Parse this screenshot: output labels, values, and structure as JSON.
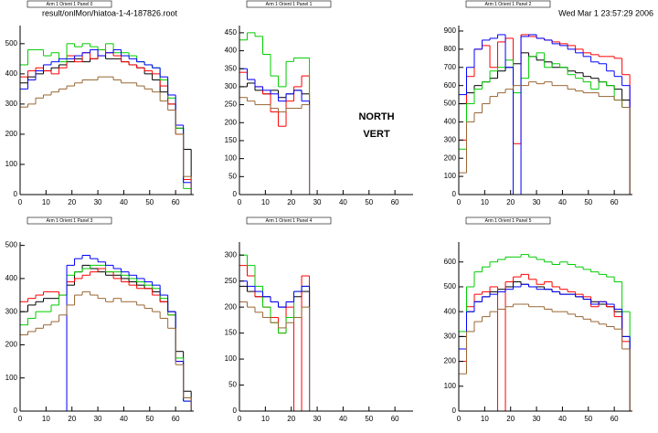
{
  "header": {
    "file": "result/onlMon/hiatoa-1-4-187826.root",
    "timestamp": "Wed Mar  1 23:57:29 2006"
  },
  "chart_data": [
    {
      "type": "histogram",
      "title": "Arm 1 Orient 1 Panel 0",
      "bins": [
        0,
        3,
        6,
        9,
        12,
        15,
        18,
        21,
        24,
        27,
        30,
        33,
        36,
        39,
        42,
        45,
        48,
        51,
        54,
        57,
        60,
        63,
        66
      ],
      "xlim": [
        0,
        67
      ],
      "ylim": [
        0,
        560
      ],
      "xticks": [
        0,
        10,
        20,
        30,
        40,
        50,
        60
      ],
      "yticks": [
        0,
        100,
        200,
        300,
        400,
        500
      ],
      "series": [
        {
          "color": "#000000",
          "values": [
            370,
            390,
            400,
            410,
            420,
            430,
            440,
            450,
            440,
            450,
            460,
            450,
            450,
            440,
            430,
            420,
            400,
            380,
            340,
            300,
            220,
            150
          ]
        },
        {
          "color": "#ff0000",
          "values": [
            390,
            410,
            420,
            410,
            400,
            420,
            460,
            440,
            470,
            450,
            480,
            470,
            460,
            440,
            430,
            420,
            410,
            400,
            360,
            300,
            200,
            50
          ]
        },
        {
          "color": "#00cc00",
          "values": [
            430,
            480,
            480,
            460,
            470,
            440,
            500,
            490,
            500,
            490,
            480,
            500,
            470,
            470,
            460,
            440,
            430,
            420,
            380,
            320,
            220,
            20
          ]
        },
        {
          "color": "#0000ff",
          "values": [
            350,
            380,
            410,
            430,
            440,
            450,
            450,
            460,
            470,
            480,
            460,
            470,
            480,
            460,
            450,
            440,
            430,
            420,
            390,
            330,
            230,
            40
          ]
        },
        {
          "color": "#996633",
          "values": [
            290,
            300,
            320,
            330,
            340,
            350,
            360,
            370,
            380,
            380,
            390,
            390,
            380,
            370,
            370,
            360,
            350,
            340,
            310,
            280,
            200,
            60
          ]
        }
      ]
    },
    {
      "type": "histogram",
      "title": "Arm 1 Orient 1 Panel 1",
      "bins": [
        0,
        3,
        6,
        9,
        12,
        15,
        18,
        21,
        24,
        27,
        30,
        33,
        36,
        39,
        42,
        45,
        48,
        51,
        54,
        57,
        60,
        63,
        66
      ],
      "xlim": [
        0,
        67
      ],
      "ylim": [
        0,
        470
      ],
      "xticks": [
        0,
        10,
        20,
        30,
        40,
        50,
        60
      ],
      "yticks": [
        0,
        50,
        100,
        150,
        200,
        250,
        300,
        350,
        400,
        450
      ],
      "annotations": [
        "NORTH",
        "VERT"
      ],
      "series": [
        {
          "color": "#000000",
          "values": [
            300,
            310,
            290,
            280,
            290,
            270,
            280,
            290,
            280,
            0,
            0,
            0,
            0,
            0,
            0,
            0,
            0,
            0,
            0,
            0,
            0,
            0
          ]
        },
        {
          "color": "#ff0000",
          "values": [
            340,
            320,
            300,
            280,
            230,
            190,
            260,
            300,
            330,
            0,
            0,
            0,
            0,
            0,
            0,
            0,
            0,
            0,
            0,
            0,
            0,
            0
          ]
        },
        {
          "color": "#00cc00",
          "values": [
            430,
            450,
            440,
            390,
            330,
            300,
            370,
            380,
            380,
            0,
            0,
            0,
            0,
            0,
            0,
            0,
            0,
            0,
            0,
            0,
            0,
            0
          ]
        },
        {
          "color": "#0000ff",
          "values": [
            350,
            320,
            300,
            290,
            280,
            260,
            280,
            290,
            260,
            0,
            0,
            0,
            0,
            0,
            0,
            0,
            0,
            0,
            0,
            0,
            0,
            0
          ]
        },
        {
          "color": "#996633",
          "values": [
            270,
            260,
            250,
            250,
            240,
            230,
            240,
            240,
            250,
            0,
            0,
            0,
            0,
            0,
            0,
            0,
            0,
            0,
            0,
            0,
            0,
            0
          ]
        }
      ]
    },
    {
      "type": "histogram",
      "title": "Arm 1 Orient 1 Panel 2",
      "bins": [
        0,
        3,
        6,
        9,
        12,
        15,
        18,
        21,
        24,
        27,
        30,
        33,
        36,
        39,
        42,
        45,
        48,
        51,
        54,
        57,
        60,
        63,
        66
      ],
      "xlim": [
        0,
        67
      ],
      "ylim": [
        0,
        930
      ],
      "xticks": [
        0,
        10,
        20,
        30,
        40,
        50,
        60
      ],
      "yticks": [
        0,
        100,
        200,
        300,
        400,
        500,
        600,
        700,
        800,
        900
      ],
      "series": [
        {
          "color": "#000000",
          "values": [
            500,
            560,
            600,
            620,
            640,
            680,
            700,
            720,
            780,
            760,
            740,
            730,
            700,
            700,
            680,
            670,
            650,
            640,
            620,
            600,
            580,
            520
          ]
        },
        {
          "color": "#ff0000",
          "values": [
            300,
            650,
            800,
            820,
            700,
            840,
            860,
            280,
            880,
            870,
            860,
            850,
            840,
            830,
            820,
            800,
            780,
            770,
            760,
            760,
            750,
            660
          ]
        },
        {
          "color": "#00cc00",
          "values": [
            250,
            500,
            580,
            620,
            680,
            700,
            740,
            560,
            640,
            760,
            780,
            700,
            720,
            700,
            660,
            640,
            620,
            580,
            620,
            600,
            520,
            480
          ]
        },
        {
          "color": "#0000ff",
          "values": [
            550,
            700,
            800,
            850,
            860,
            880,
            700,
            0,
            870,
            880,
            860,
            850,
            830,
            820,
            800,
            780,
            760,
            730,
            720,
            680,
            650,
            600
          ]
        },
        {
          "color": "#996633",
          "values": [
            120,
            400,
            450,
            500,
            540,
            560,
            580,
            600,
            600,
            620,
            610,
            620,
            600,
            600,
            580,
            570,
            560,
            560,
            540,
            540,
            520,
            480
          ]
        }
      ]
    },
    {
      "type": "histogram",
      "title": "Arm 1 Orient 1 Panel 3",
      "bins": [
        0,
        3,
        6,
        9,
        12,
        15,
        18,
        21,
        24,
        27,
        30,
        33,
        36,
        39,
        42,
        45,
        48,
        51,
        54,
        57,
        60,
        63,
        66
      ],
      "xlim": [
        0,
        67
      ],
      "ylim": [
        0,
        510
      ],
      "xticks": [
        0,
        10,
        20,
        30,
        40,
        50,
        60
      ],
      "yticks": [
        0,
        100,
        200,
        300,
        400,
        500
      ],
      "series": [
        {
          "color": "#000000",
          "values": [
            300,
            320,
            330,
            340,
            340,
            350,
            380,
            420,
            440,
            430,
            420,
            410,
            410,
            400,
            390,
            380,
            370,
            360,
            330,
            300,
            180,
            60
          ]
        },
        {
          "color": "#ff0000",
          "values": [
            330,
            340,
            350,
            360,
            360,
            350,
            390,
            400,
            410,
            420,
            430,
            420,
            400,
            390,
            380,
            370,
            370,
            350,
            330,
            290,
            150,
            40
          ]
        },
        {
          "color": "#00cc00",
          "values": [
            260,
            280,
            300,
            300,
            320,
            350,
            410,
            420,
            430,
            440,
            440,
            420,
            420,
            410,
            400,
            390,
            380,
            370,
            340,
            290,
            160,
            30
          ]
        },
        {
          "color": "#0000ff",
          "values": [
            0,
            0,
            0,
            0,
            0,
            0,
            440,
            460,
            470,
            460,
            450,
            440,
            430,
            420,
            410,
            400,
            390,
            380,
            350,
            300,
            150,
            30
          ]
        },
        {
          "color": "#996633",
          "values": [
            230,
            240,
            250,
            260,
            270,
            290,
            320,
            350,
            360,
            350,
            340,
            330,
            340,
            330,
            330,
            320,
            310,
            300,
            280,
            250,
            140,
            40
          ]
        }
      ]
    },
    {
      "type": "histogram",
      "title": "Arm 1 Orient 1 Panel 4",
      "bins": [
        0,
        3,
        6,
        9,
        12,
        15,
        18,
        21,
        24,
        27,
        30,
        33,
        36,
        39,
        42,
        45,
        48,
        51,
        54,
        57,
        60,
        63,
        66
      ],
      "xlim": [
        0,
        67
      ],
      "ylim": [
        0,
        325
      ],
      "xticks": [
        0,
        10,
        20,
        30,
        40,
        50,
        60
      ],
      "yticks": [
        0,
        50,
        100,
        150,
        200,
        250,
        300
      ],
      "series": [
        {
          "color": "#000000",
          "values": [
            240,
            230,
            220,
            220,
            210,
            200,
            210,
            220,
            230,
            0,
            0,
            0,
            0,
            0,
            0,
            0,
            0,
            0,
            0,
            0,
            0,
            0
          ]
        },
        {
          "color": "#ff0000",
          "values": [
            280,
            260,
            220,
            200,
            180,
            150,
            200,
            0,
            260,
            0,
            0,
            0,
            0,
            0,
            0,
            0,
            0,
            0,
            0,
            0,
            0,
            0
          ]
        },
        {
          "color": "#00cc00",
          "values": [
            300,
            280,
            240,
            200,
            170,
            150,
            180,
            230,
            240,
            0,
            0,
            0,
            0,
            0,
            0,
            0,
            0,
            0,
            0,
            0,
            0,
            0
          ]
        },
        {
          "color": "#0000ff",
          "values": [
            250,
            240,
            230,
            220,
            210,
            200,
            210,
            230,
            240,
            0,
            0,
            0,
            0,
            0,
            0,
            0,
            0,
            0,
            0,
            0,
            0,
            0
          ]
        },
        {
          "color": "#996633",
          "values": [
            210,
            200,
            190,
            180,
            170,
            160,
            170,
            180,
            200,
            0,
            0,
            0,
            0,
            0,
            0,
            0,
            0,
            0,
            0,
            0,
            0,
            0
          ]
        }
      ]
    },
    {
      "type": "histogram",
      "title": "Arm 1 Orient 1 Panel 5",
      "bins": [
        0,
        3,
        6,
        9,
        12,
        15,
        18,
        21,
        24,
        27,
        30,
        33,
        36,
        39,
        42,
        45,
        48,
        51,
        54,
        57,
        60,
        63,
        66
      ],
      "xlim": [
        0,
        67
      ],
      "ylim": [
        0,
        680
      ],
      "xticks": [
        0,
        10,
        20,
        30,
        40,
        50,
        60
      ],
      "yticks": [
        0,
        100,
        200,
        300,
        400,
        500,
        600
      ],
      "series": [
        {
          "color": "#000000",
          "values": [
            300,
            400,
            440,
            460,
            480,
            490,
            500,
            520,
            510,
            500,
            500,
            490,
            480,
            470,
            470,
            460,
            450,
            440,
            430,
            420,
            400,
            300
          ]
        },
        {
          "color": "#ff0000",
          "values": [
            200,
            420,
            470,
            480,
            500,
            0,
            520,
            540,
            550,
            530,
            510,
            520,
            500,
            490,
            480,
            470,
            460,
            420,
            440,
            420,
            380,
            280
          ]
        },
        {
          "color": "#00cc00",
          "values": [
            320,
            500,
            560,
            580,
            600,
            610,
            620,
            620,
            630,
            620,
            610,
            600,
            590,
            600,
            590,
            580,
            570,
            560,
            550,
            540,
            520,
            400
          ]
        },
        {
          "color": "#0000ff",
          "values": [
            250,
            400,
            440,
            460,
            470,
            480,
            490,
            500,
            510,
            500,
            490,
            490,
            480,
            470,
            470,
            460,
            450,
            430,
            440,
            430,
            410,
            300
          ]
        },
        {
          "color": "#996633",
          "values": [
            150,
            320,
            360,
            380,
            400,
            410,
            420,
            430,
            430,
            420,
            420,
            410,
            400,
            400,
            390,
            380,
            370,
            360,
            350,
            340,
            330,
            250
          ]
        }
      ]
    }
  ]
}
